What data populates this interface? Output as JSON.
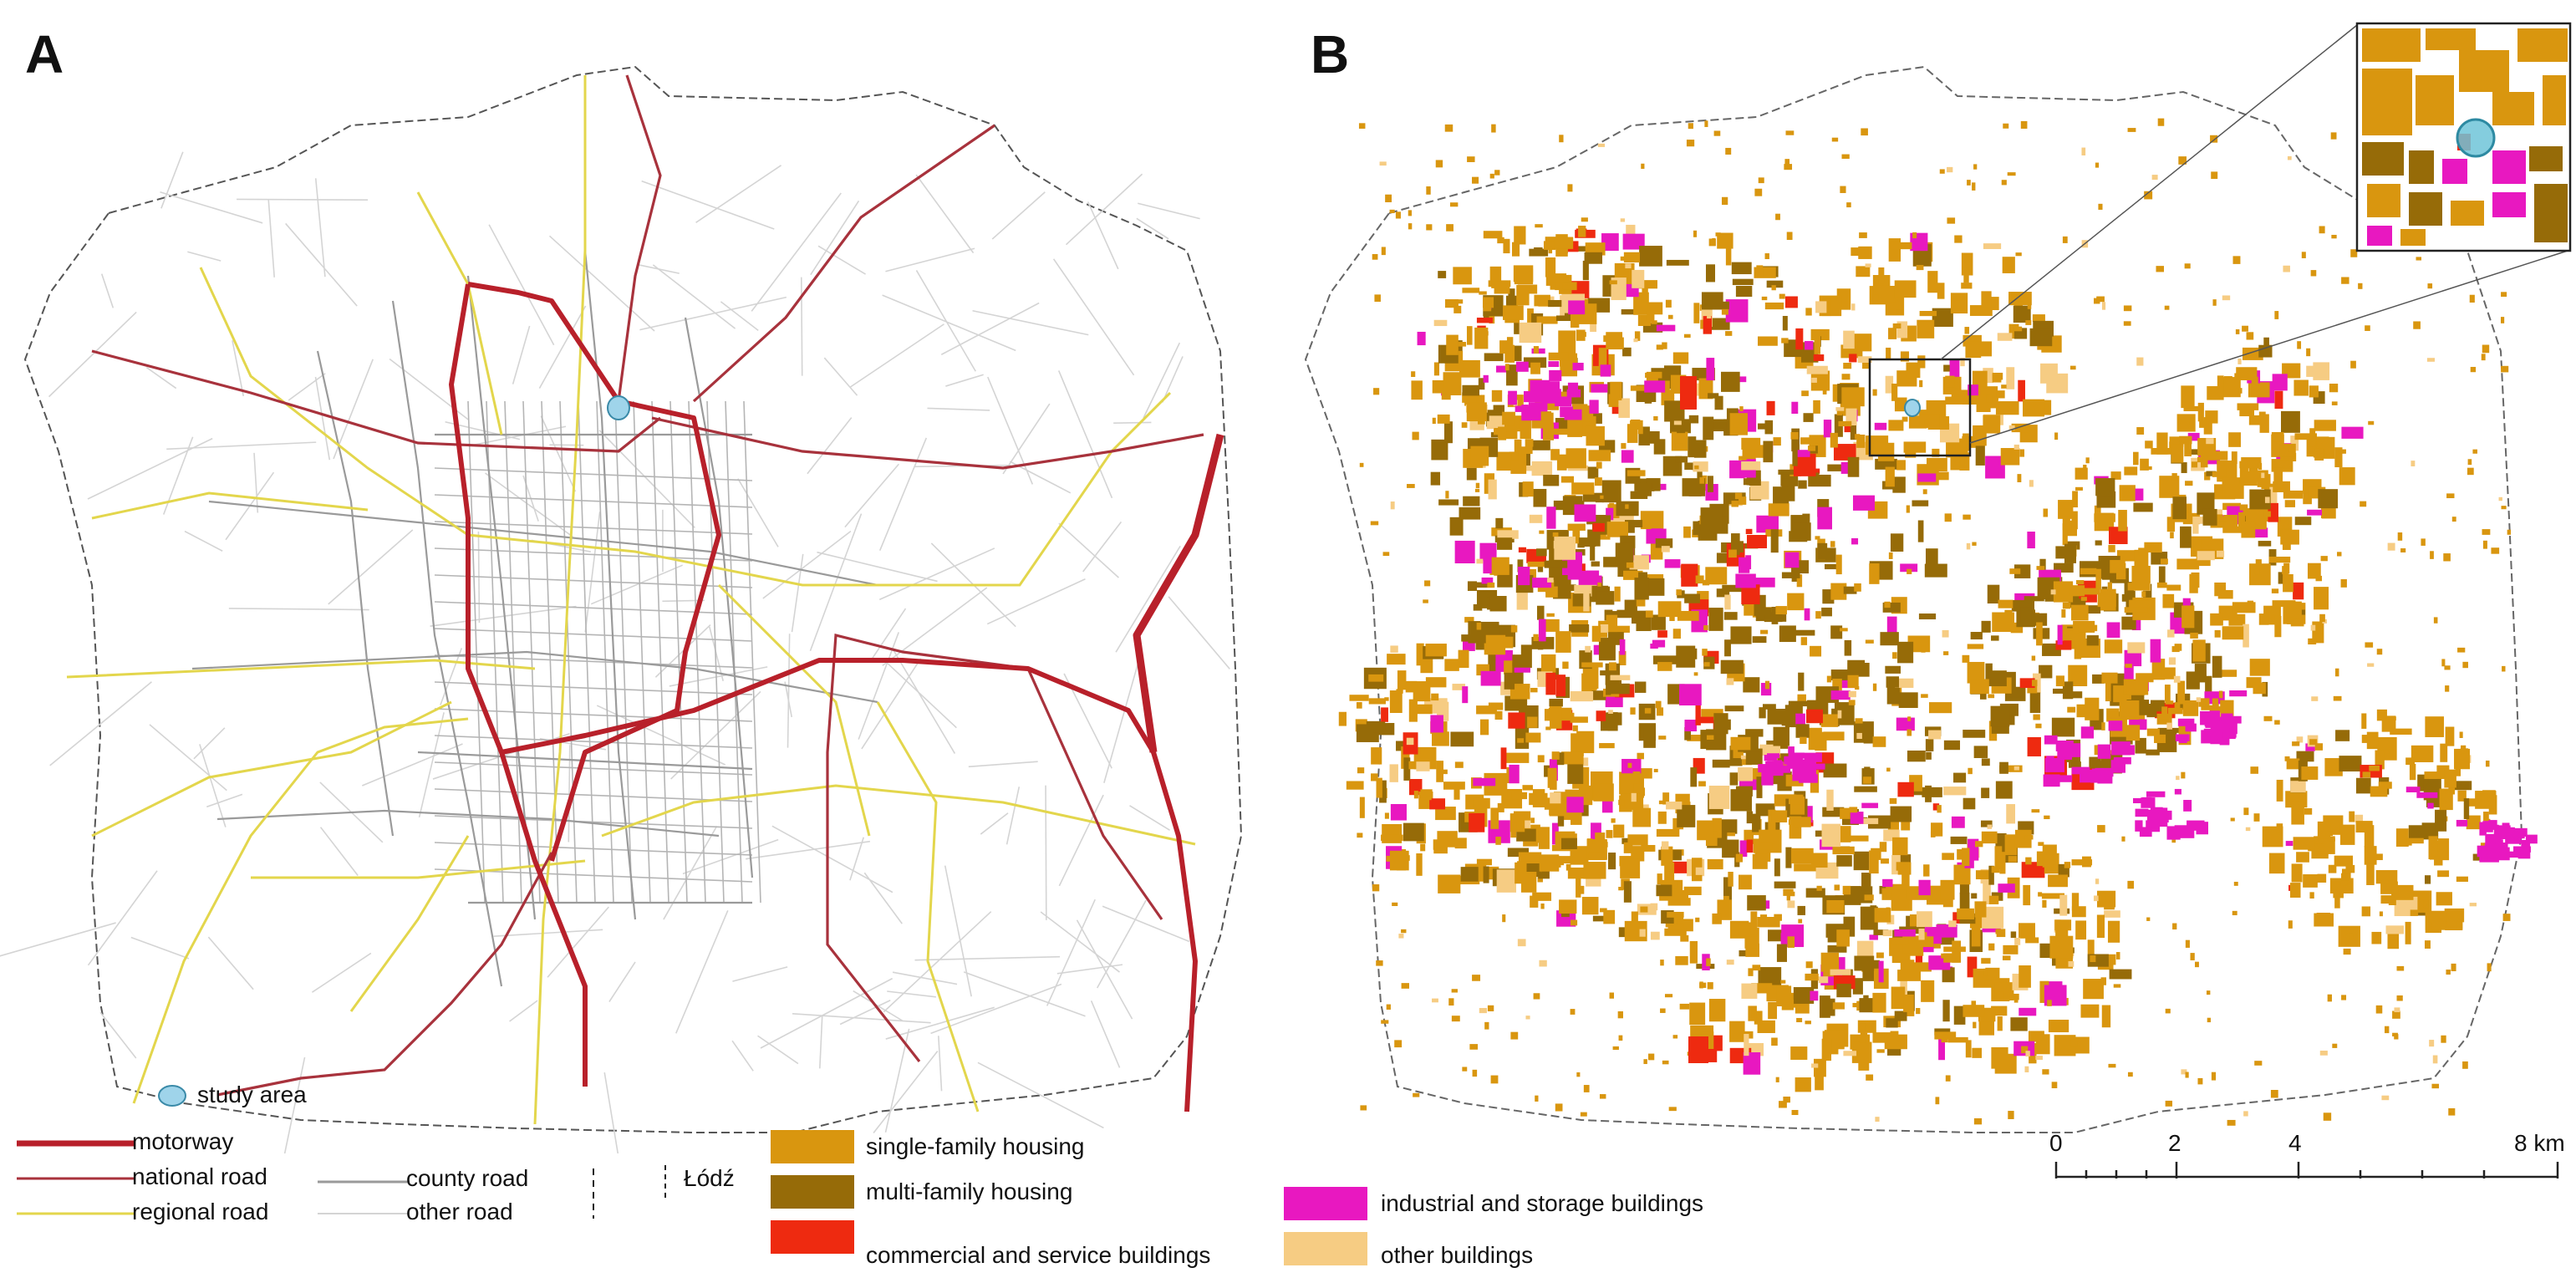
{
  "panels": {
    "a_label": "A",
    "b_label": "B"
  },
  "legend_roads": {
    "study_area": "study area",
    "motorway": "motorway",
    "national_road": "national road",
    "regional_road": "regional road",
    "county_road": "county road",
    "other_road": "other road",
    "city": "Łódź"
  },
  "legend_buildings": {
    "single_family": "single-family housing",
    "multi_family": "multi-family housing",
    "commercial": "commercial and service buildings",
    "industrial": "industrial and storage buildings",
    "other": "other buildings"
  },
  "scale_bar": {
    "ticks": [
      "0",
      "2",
      "4",
      "8 km"
    ]
  },
  "colors": {
    "motorway": "#b8202a",
    "national_road": "#a8323c",
    "regional_road": "#e3d64c",
    "county_road": "#9a9a9a",
    "other_road": "#d4d4d4",
    "study_area": "#9fd4ea",
    "single_family": "#d9960f",
    "multi_family": "#966b08",
    "commercial": "#ee2a10",
    "industrial": "#e818c0",
    "other": "#f6cc83"
  }
}
